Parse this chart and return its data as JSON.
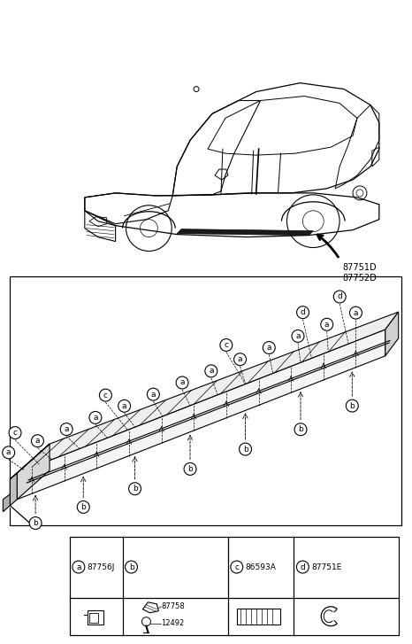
{
  "bg_color": "#ffffff",
  "ref_label_1": "87751D",
  "ref_label_2": "87752D",
  "part_a_code": "87756J",
  "part_b1_code": "87758",
  "part_b2_code": "12492",
  "part_c_code": "86593A",
  "part_d_code": "87751E",
  "line_color": "#000000",
  "light_gray": "#e0e0e0",
  "mid_gray": "#c0c0c0",
  "dark_gray": "#888888"
}
